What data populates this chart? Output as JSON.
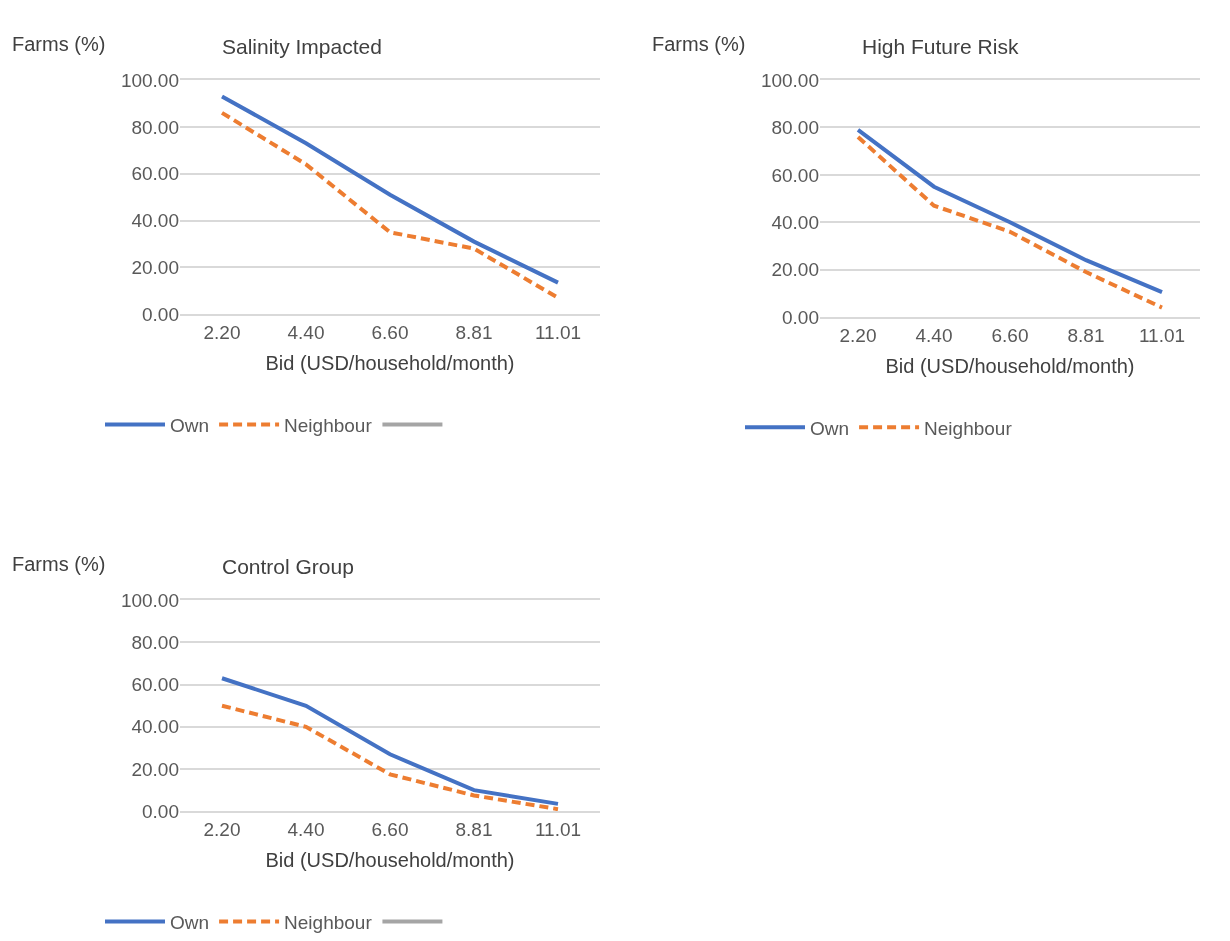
{
  "chart_data": [
    {
      "type": "line",
      "title": "Salinity Impacted",
      "xlabel": "Bid (USD/household/month)",
      "ylabel": "Farms (%)",
      "categories": [
        "2.20",
        "4.40",
        "6.60",
        "8.81",
        "11.01"
      ],
      "ylim": [
        0,
        100
      ],
      "yticks": [
        {
          "value": 0,
          "label": "0.00"
        },
        {
          "value": 20,
          "label": "20.00"
        },
        {
          "value": 40,
          "label": "40.00"
        },
        {
          "value": 60,
          "label": "60.00"
        },
        {
          "value": 80,
          "label": "80.00"
        },
        {
          "value": 100,
          "label": "100.00"
        }
      ],
      "grid": "y",
      "legend": "bottom",
      "marker": "none",
      "series": [
        {
          "name": "Own",
          "color": "#4472c4",
          "line_style": "solid",
          "values": [
            93,
            73,
            51,
            31,
            13.5
          ]
        },
        {
          "name": "Neighbour",
          "color": "#ed7d31",
          "line_style": "dashed",
          "values": [
            86,
            64,
            35,
            28,
            7
          ]
        },
        {
          "color": "#a5a5a5",
          "line_style": "solid",
          "values": [
            null,
            null,
            null,
            null,
            null
          ]
        }
      ]
    },
    {
      "type": "line",
      "title": "High Future Risk",
      "xlabel": "Bid (USD/household/month)",
      "ylabel": "Farms (%)",
      "categories": [
        "2.20",
        "4.40",
        "6.60",
        "8.81",
        "11.01"
      ],
      "ylim": [
        0,
        100
      ],
      "yticks": [
        {
          "value": 0,
          "label": "0.00"
        },
        {
          "value": 20,
          "label": "20.00"
        },
        {
          "value": 40,
          "label": "40.00"
        },
        {
          "value": 60,
          "label": "60.00"
        },
        {
          "value": 80,
          "label": "80.00"
        },
        {
          "value": 100,
          "label": "100.00"
        }
      ],
      "grid": "y",
      "legend": "bottom",
      "marker": "none",
      "series": [
        {
          "name": "Own",
          "color": "#4472c4",
          "line_style": "solid",
          "values": [
            79,
            55,
            40,
            24,
            10.5
          ]
        },
        {
          "name": "Neighbour",
          "color": "#ed7d31",
          "line_style": "dashed",
          "values": [
            76,
            47,
            36,
            19,
            4
          ]
        }
      ]
    },
    {
      "type": "line",
      "title": "Control Group",
      "xlabel": "Bid (USD/household/month)",
      "ylabel": "Farms (%)",
      "categories": [
        "2.20",
        "4.40",
        "6.60",
        "8.81",
        "11.01"
      ],
      "ylim": [
        0,
        100
      ],
      "yticks": [
        {
          "value": 0,
          "label": "0.00"
        },
        {
          "value": 20,
          "label": "20.00"
        },
        {
          "value": 40,
          "label": "40.00"
        },
        {
          "value": 60,
          "label": "60.00"
        },
        {
          "value": 80,
          "label": "80.00"
        },
        {
          "value": 100,
          "label": "100.00"
        }
      ],
      "grid": "y",
      "legend": "bottom",
      "marker": "none",
      "series": [
        {
          "name": "Own",
          "color": "#4472c4",
          "line_style": "solid",
          "values": [
            63,
            50,
            27,
            10,
            3.5
          ]
        },
        {
          "name": "Neighbour",
          "color": "#ed7d31",
          "line_style": "dashed",
          "values": [
            50,
            40,
            17.5,
            7.5,
            1
          ]
        },
        {
          "color": "#a5a5a5",
          "line_style": "solid",
          "values": [
            null,
            null,
            null,
            null,
            null
          ]
        }
      ]
    }
  ]
}
